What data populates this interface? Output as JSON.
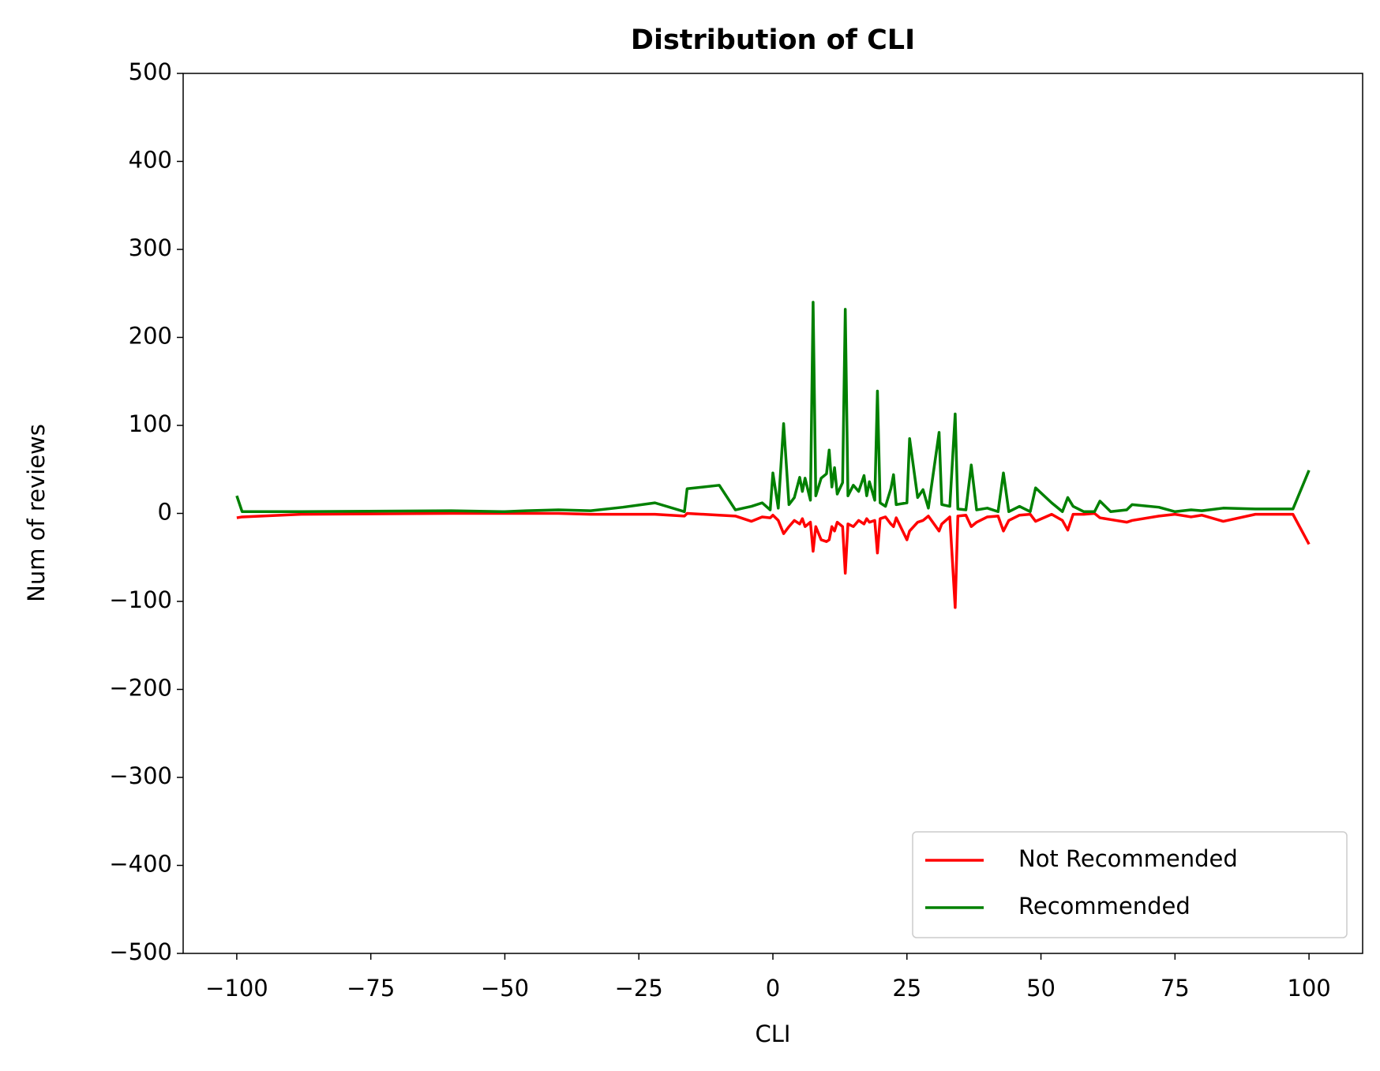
{
  "chart_data": {
    "type": "line",
    "title": "Distribution of CLI",
    "x_label": "CLI",
    "y_label": "Num of reviews",
    "x": [
      -100,
      -99,
      -88,
      -60,
      -50,
      -46,
      -40,
      -34,
      -28,
      -22,
      -16.5,
      -16,
      -10,
      -7,
      -4,
      -2,
      -0.5,
      0,
      1,
      2,
      3,
      4,
      5,
      5.5,
      6,
      7,
      7.5,
      8,
      9,
      10,
      10.5,
      11,
      11.5,
      12,
      13,
      13.5,
      14,
      15,
      16,
      17,
      17.5,
      18,
      19,
      19.5,
      20,
      21,
      22,
      22.5,
      23,
      25,
      25.5,
      27,
      28,
      29,
      31,
      31.5,
      33,
      34,
      34.5,
      36,
      37,
      38,
      40,
      42,
      43,
      44,
      46,
      48,
      49,
      52,
      54,
      55,
      56,
      58,
      60,
      61,
      63,
      66,
      67,
      72,
      75,
      78,
      80,
      84,
      90,
      97,
      100
    ],
    "series": [
      {
        "name": "Not Recommended",
        "color": "#ff0000",
        "values": [
          -5,
          -4,
          -1,
          0,
          0,
          0,
          0,
          -1,
          -1,
          -1,
          -3,
          0,
          -2,
          -3,
          -9,
          -4,
          -5,
          -2,
          -8,
          -23,
          -15,
          -8,
          -12,
          -6,
          -15,
          -10,
          -43,
          -15,
          -30,
          -32,
          -30,
          -15,
          -20,
          -10,
          -15,
          -68,
          -12,
          -15,
          -8,
          -12,
          -6,
          -10,
          -8,
          -45,
          -6,
          -4,
          -12,
          -15,
          -5,
          -30,
          -20,
          -10,
          -8,
          -3,
          -20,
          -12,
          -4,
          -107,
          -3,
          -2,
          -15,
          -10,
          -4,
          -3,
          -20,
          -8,
          -2,
          -1,
          -9,
          -1,
          -8,
          -19,
          -1,
          -1,
          0,
          -5,
          -7,
          -10,
          -8,
          -3,
          -1,
          -4,
          -2,
          -9,
          -1,
          -1,
          -35
        ]
      },
      {
        "name": "Recommended",
        "color": "#008000",
        "values": [
          20,
          2,
          2,
          3,
          2,
          3,
          4,
          3,
          7,
          12,
          2,
          28,
          32,
          4,
          8,
          12,
          4,
          46,
          6,
          102,
          10,
          18,
          41,
          25,
          40,
          15,
          240,
          20,
          40,
          45,
          72,
          30,
          52,
          22,
          35,
          232,
          20,
          32,
          25,
          43,
          20,
          36,
          15,
          139,
          12,
          8,
          28,
          44,
          10,
          12,
          85,
          18,
          27,
          6,
          92,
          10,
          8,
          113,
          5,
          4,
          55,
          4,
          6,
          2,
          46,
          2,
          8,
          2,
          29,
          12,
          2,
          18,
          8,
          2,
          2,
          14,
          2,
          4,
          10,
          7,
          2,
          4,
          3,
          6,
          5,
          5,
          49
        ]
      }
    ],
    "xlim": [
      -110,
      110
    ],
    "xticks": [
      {
        "value": -100,
        "label": "−100"
      },
      {
        "value": -75,
        "label": "−75"
      },
      {
        "value": -50,
        "label": "−50"
      },
      {
        "value": -25,
        "label": "−25"
      },
      0,
      25,
      50,
      75,
      100
    ],
    "ylim": [
      -500,
      500
    ],
    "yticks": [
      {
        "value": -500,
        "label": "−500"
      },
      {
        "value": -400,
        "label": "−400"
      },
      {
        "value": -300,
        "label": "−300"
      },
      {
        "value": -200,
        "label": "−200"
      },
      {
        "value": -100,
        "label": "−100"
      },
      0,
      100,
      200,
      300,
      400,
      500
    ],
    "legend": "lower right",
    "grid": false
  }
}
